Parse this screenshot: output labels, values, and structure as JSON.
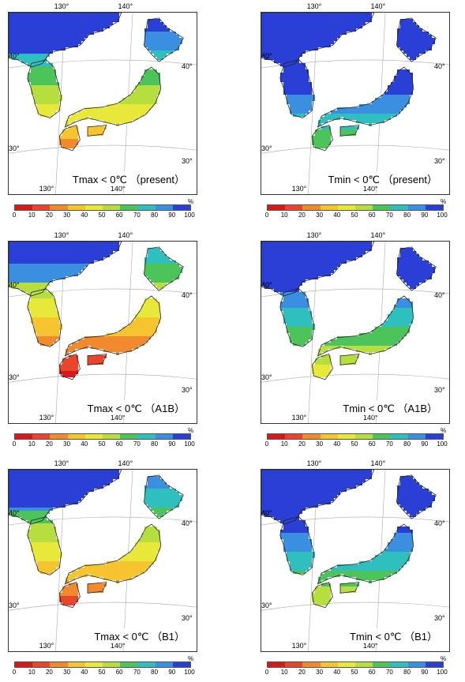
{
  "figure": {
    "panels": [
      {
        "id": "tmax-present",
        "label": "Tmax < 0℃ （present）",
        "variable": "Tmax",
        "scenario": "present"
      },
      {
        "id": "tmin-present",
        "label": "Tmin < 0℃ （present）",
        "variable": "Tmin",
        "scenario": "present"
      },
      {
        "id": "tmax-a1b",
        "label": "Tmax < 0℃ （A1B）",
        "variable": "Tmax",
        "scenario": "A1B"
      },
      {
        "id": "tmin-a1b",
        "label": "Tmin < 0℃ （A1B）",
        "variable": "Tmin",
        "scenario": "A1B"
      },
      {
        "id": "tmax-b1",
        "label": "Tmax < 0℃ （B1）",
        "variable": "Tmax",
        "scenario": "B1"
      },
      {
        "id": "tmin-b1",
        "label": "Tmin < 0℃ （B1）",
        "variable": "Tmin",
        "scenario": "B1"
      }
    ],
    "graticule": {
      "top_lon_labels": [
        "130°",
        "140°"
      ],
      "bottom_lon_labels": [
        "130°",
        "140°"
      ],
      "left_lat_labels": [
        "40°",
        "30°"
      ],
      "right_lat_labels": [
        "40°",
        "30°"
      ]
    },
    "colorbar": {
      "unit": "%",
      "ticks": [
        "0",
        "10",
        "20",
        "30",
        "40",
        "50",
        "60",
        "70",
        "80",
        "90",
        "100"
      ],
      "colors": [
        "#d7191c",
        "#e8452c",
        "#f08a2c",
        "#f6c42f",
        "#e8e83a",
        "#b6de3e",
        "#4cc45a",
        "#2fbfbf",
        "#3a8fe0",
        "#2a3fd6"
      ]
    }
  }
}
